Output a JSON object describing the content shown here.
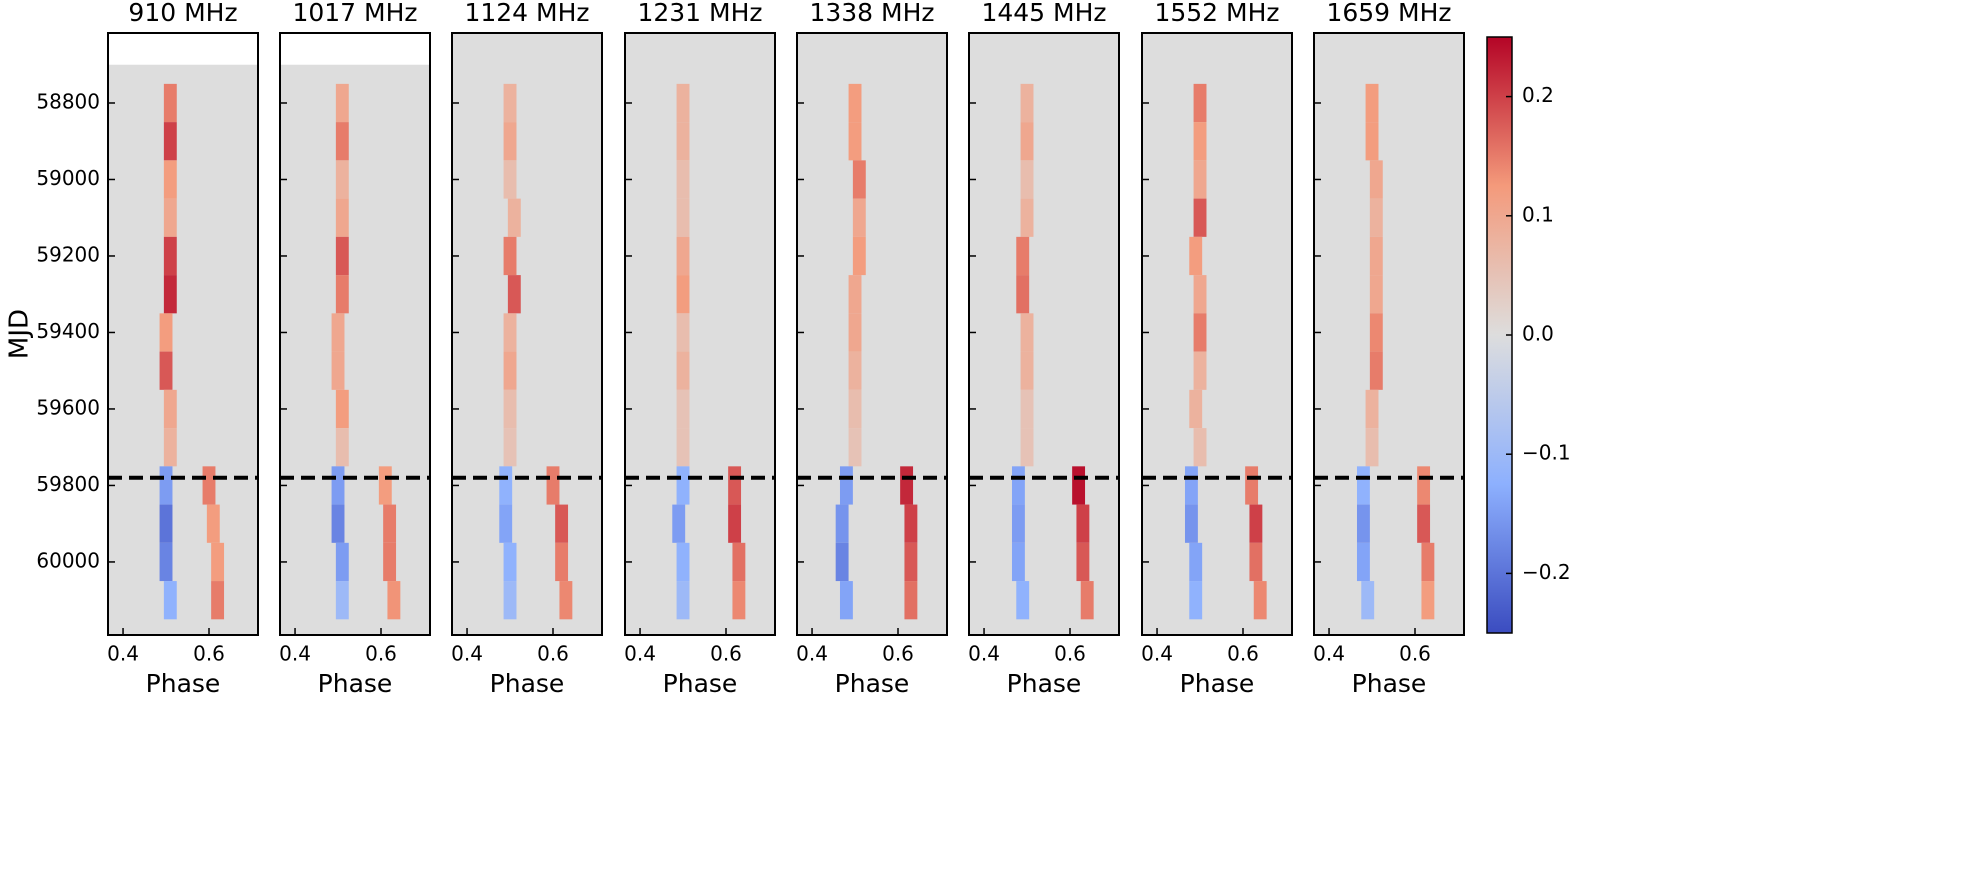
{
  "chart_data": {
    "type": "heatmap",
    "xlabel": "Phase",
    "ylabel": "MJD",
    "xlim": [
      0.365,
      0.714
    ],
    "xticks": [
      0.4,
      0.6
    ],
    "ylim": [
      58617,
      60191
    ],
    "yticks": [
      58800,
      59000,
      59200,
      59400,
      59600,
      59800,
      60000
    ],
    "hline": 59780,
    "clim": [
      -0.25,
      0.25
    ],
    "cticks": [
      {
        "value": -0.2,
        "label": "−0.2"
      },
      {
        "value": -0.1,
        "label": "−0.1"
      },
      {
        "value": 0,
        "label": "0.0"
      },
      0.1,
      0.2
    ],
    "rows": [
      58800,
      58900,
      59000,
      59100,
      59200,
      59300,
      59400,
      59500,
      59600,
      59700,
      59800,
      59900,
      60000,
      60100
    ],
    "panels": [
      {
        "title": "910 MHz",
        "data_start": 58700,
        "ridge_phase": [
          0.51,
          0.51,
          0.51,
          0.51,
          0.51,
          0.51,
          0.5,
          0.5,
          0.51,
          0.51,
          0.6,
          0.61,
          0.62,
          0.62
        ],
        "ridge_values": [
          0.15,
          0.2,
          0.12,
          0.1,
          0.2,
          0.22,
          0.12,
          0.18,
          0.1,
          0.08,
          0.15,
          0.12,
          0.12,
          0.15
        ],
        "trough_phase": [
          null,
          null,
          null,
          null,
          null,
          null,
          null,
          null,
          null,
          null,
          0.5,
          0.5,
          0.5,
          0.51
        ],
        "trough_values": [
          null,
          null,
          null,
          null,
          null,
          null,
          null,
          null,
          null,
          null,
          -0.15,
          -0.2,
          -0.18,
          -0.12
        ]
      },
      {
        "title": "1017 MHz",
        "data_start": 58700,
        "ridge_phase": [
          0.51,
          0.51,
          0.51,
          0.51,
          0.51,
          0.51,
          0.5,
          0.5,
          0.51,
          0.51,
          0.61,
          0.62,
          0.62,
          0.63
        ],
        "ridge_values": [
          0.1,
          0.15,
          0.08,
          0.1,
          0.18,
          0.15,
          0.1,
          0.1,
          0.12,
          0.06,
          0.12,
          0.15,
          0.15,
          0.13
        ],
        "trough_phase": [
          null,
          null,
          null,
          null,
          null,
          null,
          null,
          null,
          null,
          null,
          0.5,
          0.5,
          0.51,
          0.51
        ],
        "trough_values": [
          null,
          null,
          null,
          null,
          null,
          null,
          null,
          null,
          null,
          null,
          -0.15,
          -0.18,
          -0.15,
          -0.1
        ]
      },
      {
        "title": "1124 MHz",
        "data_start": 58617,
        "ridge_phase": [
          0.5,
          0.5,
          0.5,
          0.51,
          0.5,
          0.51,
          0.5,
          0.5,
          0.5,
          0.5,
          0.6,
          0.62,
          0.62,
          0.63
        ],
        "ridge_values": [
          0.08,
          0.1,
          0.06,
          0.08,
          0.15,
          0.18,
          0.08,
          0.1,
          0.06,
          0.05,
          0.15,
          0.18,
          0.15,
          0.14
        ],
        "trough_phase": [
          null,
          null,
          null,
          null,
          null,
          null,
          null,
          null,
          null,
          null,
          0.49,
          0.49,
          0.5,
          0.5
        ],
        "trough_values": [
          null,
          null,
          null,
          null,
          null,
          null,
          null,
          null,
          null,
          null,
          -0.12,
          -0.14,
          -0.12,
          -0.1
        ]
      },
      {
        "title": "1231 MHz",
        "data_start": 58617,
        "ridge_phase": [
          0.5,
          0.5,
          0.5,
          0.5,
          0.5,
          0.5,
          0.5,
          0.5,
          0.5,
          0.5,
          0.62,
          0.62,
          0.63,
          0.63
        ],
        "ridge_values": [
          0.08,
          0.08,
          0.06,
          0.06,
          0.1,
          0.12,
          0.06,
          0.08,
          0.05,
          0.05,
          0.18,
          0.2,
          0.16,
          0.14
        ],
        "trough_phase": [
          null,
          null,
          null,
          null,
          null,
          null,
          null,
          null,
          null,
          null,
          0.5,
          0.49,
          0.5,
          0.5
        ],
        "trough_values": [
          null,
          null,
          null,
          null,
          null,
          null,
          null,
          null,
          null,
          null,
          -0.12,
          -0.15,
          -0.12,
          -0.1
        ]
      },
      {
        "title": "1338 MHz",
        "data_start": 58617,
        "ridge_phase": [
          0.5,
          0.5,
          0.51,
          0.51,
          0.51,
          0.5,
          0.5,
          0.5,
          0.5,
          0.5,
          0.62,
          0.63,
          0.63,
          0.63
        ],
        "ridge_values": [
          0.12,
          0.12,
          0.15,
          0.1,
          0.12,
          0.1,
          0.1,
          0.08,
          0.06,
          0.05,
          0.22,
          0.2,
          0.18,
          0.16
        ],
        "trough_phase": [
          null,
          null,
          null,
          null,
          null,
          null,
          null,
          null,
          null,
          null,
          0.48,
          0.47,
          0.47,
          0.48
        ],
        "trough_values": [
          null,
          null,
          null,
          null,
          null,
          null,
          null,
          null,
          null,
          null,
          -0.15,
          -0.16,
          -0.18,
          -0.14
        ]
      },
      {
        "title": "1445 MHz",
        "data_start": 58617,
        "ridge_phase": [
          0.5,
          0.5,
          0.5,
          0.5,
          0.49,
          0.49,
          0.5,
          0.5,
          0.5,
          0.5,
          0.62,
          0.63,
          0.63,
          0.64
        ],
        "ridge_values": [
          0.08,
          0.1,
          0.06,
          0.08,
          0.15,
          0.16,
          0.08,
          0.08,
          0.05,
          0.05,
          0.24,
          0.2,
          0.18,
          0.15
        ],
        "trough_phase": [
          null,
          null,
          null,
          null,
          null,
          null,
          null,
          null,
          null,
          null,
          0.48,
          0.48,
          0.48,
          0.49
        ],
        "trough_values": [
          null,
          null,
          null,
          null,
          null,
          null,
          null,
          null,
          null,
          null,
          -0.14,
          -0.15,
          -0.14,
          -0.12
        ]
      },
      {
        "title": "1552 MHz",
        "data_start": 58617,
        "ridge_phase": [
          0.5,
          0.5,
          0.5,
          0.5,
          0.49,
          0.5,
          0.5,
          0.5,
          0.49,
          0.5,
          0.62,
          0.63,
          0.63,
          0.64
        ],
        "ridge_values": [
          0.15,
          0.12,
          0.1,
          0.18,
          0.12,
          0.1,
          0.15,
          0.08,
          0.08,
          0.06,
          0.15,
          0.2,
          0.16,
          0.14
        ],
        "trough_phase": [
          null,
          null,
          null,
          null,
          null,
          null,
          null,
          null,
          null,
          null,
          0.48,
          0.48,
          0.49,
          0.49
        ],
        "trough_values": [
          null,
          null,
          null,
          null,
          null,
          null,
          null,
          null,
          null,
          null,
          -0.14,
          -0.16,
          -0.14,
          -0.12
        ]
      },
      {
        "title": "1659 MHz",
        "data_start": 58617,
        "ridge_phase": [
          0.5,
          0.5,
          0.51,
          0.51,
          0.51,
          0.51,
          0.51,
          0.51,
          0.5,
          0.5,
          0.62,
          0.62,
          0.63,
          0.63
        ],
        "ridge_values": [
          0.12,
          0.12,
          0.1,
          0.08,
          0.1,
          0.1,
          0.14,
          0.15,
          0.08,
          0.06,
          0.14,
          0.18,
          0.15,
          0.12
        ],
        "trough_phase": [
          null,
          null,
          null,
          null,
          null,
          null,
          null,
          null,
          null,
          null,
          0.48,
          0.48,
          0.48,
          0.49
        ],
        "trough_values": [
          null,
          null,
          null,
          null,
          null,
          null,
          null,
          null,
          null,
          null,
          -0.12,
          -0.16,
          -0.14,
          -0.1
        ]
      }
    ]
  }
}
